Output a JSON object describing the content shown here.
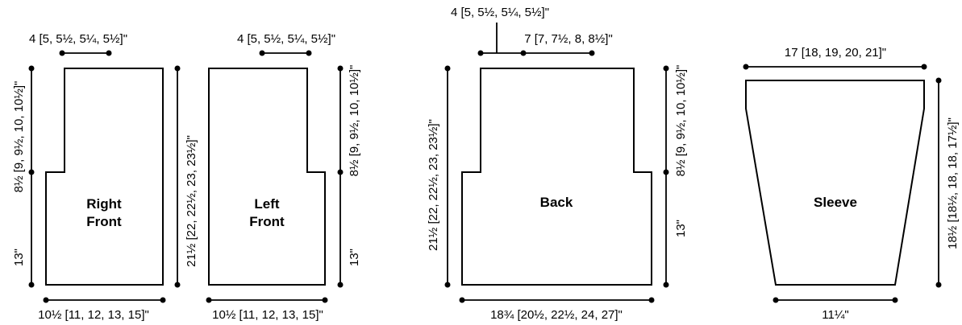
{
  "pieces": {
    "right_front": {
      "label_line1": "Right",
      "label_line2": "Front",
      "top_width": "4 [5, 5½, 5¼, 5½]\"",
      "bottom_width": "10½ [11, 12, 13, 15]\"",
      "upper_height": "8½ [9, 9½, 10, 10½]\"",
      "lower_height": "13\"",
      "total_height": "21½ [22, 22½, 23, 23½]\""
    },
    "left_front": {
      "label_line1": "Left",
      "label_line2": "Front",
      "top_width": "4 [5, 5½, 5¼, 5½]\"",
      "bottom_width": "10½ [11, 12, 13, 15]\"",
      "upper_height": "8½ [9, 9½, 10, 10½]\"",
      "lower_height": "13\""
    },
    "back": {
      "label": "Back",
      "shoulder_width": "4 [5, 5½, 5¼, 5½]\"",
      "neck_width": "7 [7, 7½, 8, 8½]\"",
      "bottom_width": "18¾ [20½, 22½, 24, 27]\"",
      "upper_height": "8½ [9, 9½, 10, 10½]\"",
      "lower_height": "13\"",
      "total_height": "21½ [22, 22½, 23, 23½]\""
    },
    "sleeve": {
      "label": "Sleeve",
      "top_width": "17 [18, 19, 20, 21]\"",
      "bottom_width": "11¼\"",
      "height": "18½ [18½, 18, 18, 17½]\""
    }
  }
}
